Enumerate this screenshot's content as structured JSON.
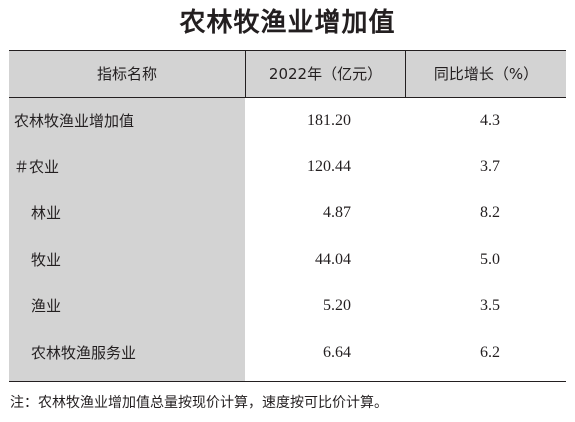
{
  "title": "农林牧渔业增加值",
  "headers": [
    "指标名称",
    "2022年（亿元）",
    "同比增长（%）"
  ],
  "rows": [
    {
      "label": "农林牧渔业增加值",
      "value": "181.20",
      "growth": "4.3"
    },
    {
      "label": "＃农业",
      "value": "120.44",
      "growth": "3.7"
    },
    {
      "label": "林业",
      "value": "4.87",
      "growth": "8.2"
    },
    {
      "label": "牧业",
      "value": "44.04",
      "growth": "5.0"
    },
    {
      "label": "渔业",
      "value": "5.20",
      "growth": "3.5"
    },
    {
      "label": "农林牧渔服务业",
      "value": "6.64",
      "growth": "6.2"
    }
  ],
  "note": "注：农林牧渔业增加值总量按现价计算，速度按可比价计算。",
  "colors": {
    "header_bg": "#d3d3d3",
    "label_col_bg": "#d3d3d3",
    "text": "#231f20"
  }
}
